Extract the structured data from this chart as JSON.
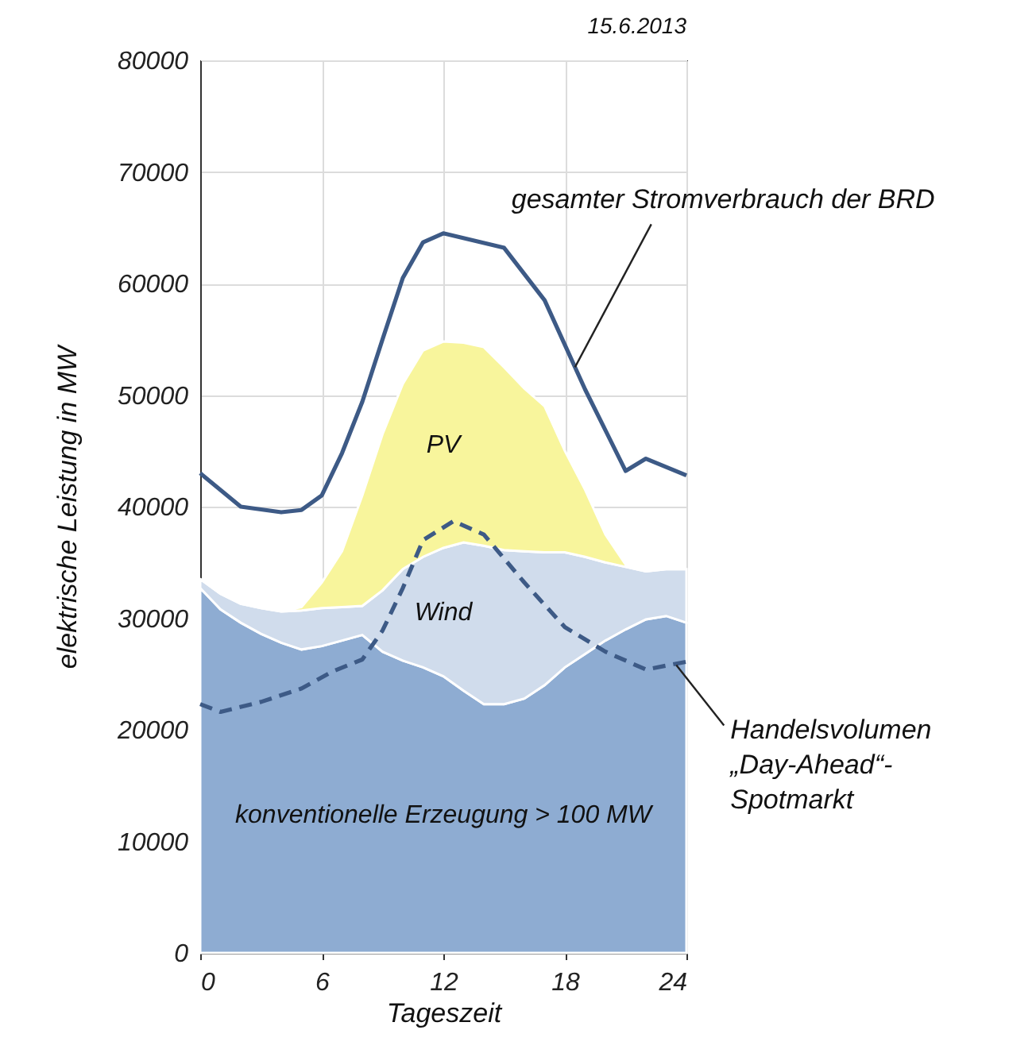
{
  "chart_data": {
    "type": "area",
    "title": "15.6.2013",
    "xlabel": "Tageszeit",
    "ylabel": "elektrische Leistung in MW",
    "x": [
      0,
      1,
      2,
      3,
      4,
      5,
      6,
      7,
      8,
      9,
      10,
      11,
      12,
      13,
      14,
      15,
      16,
      17,
      18,
      19,
      20,
      21,
      22,
      23,
      24
    ],
    "stacked": true,
    "series": [
      {
        "name": "konventionelle Erzeugung > 100 MW",
        "color": "#8eacd2",
        "values": [
          32700,
          30800,
          29600,
          28600,
          27800,
          27200,
          27500,
          28000,
          28500,
          27000,
          26200,
          25600,
          24800,
          23500,
          22300,
          22300,
          22800,
          24000,
          25600,
          26800,
          28000,
          29000,
          29900,
          30200,
          29600
        ]
      },
      {
        "name": "Wind",
        "color": "#d0dcec",
        "values": [
          800,
          1400,
          1700,
          2300,
          2800,
          3500,
          3400,
          3000,
          2600,
          5500,
          8200,
          9900,
          11500,
          13300,
          14200,
          13800,
          13200,
          11900,
          10300,
          8700,
          7000,
          5600,
          4300,
          4200,
          4800
        ]
      },
      {
        "name": "PV",
        "color": "#f8f59c",
        "values": [
          0,
          0,
          0,
          0,
          0,
          300,
          2300,
          5000,
          9900,
          14000,
          16600,
          18500,
          18500,
          17900,
          17800,
          16400,
          14600,
          13100,
          9100,
          6000,
          2500,
          200,
          0,
          0,
          0
        ]
      },
      {
        "type": "line",
        "color": "#3d5a86",
        "line_style": "solid",
        "x": [
          0,
          2,
          4,
          5,
          6,
          7,
          8,
          9,
          10,
          11,
          12,
          15,
          17,
          19,
          21,
          22,
          24
        ],
        "values": [
          43000,
          40000,
          39500,
          39700,
          41000,
          44800,
          49400,
          55000,
          60500,
          63700,
          64500,
          63200,
          58500,
          50500,
          43200,
          44300,
          42800
        ]
      },
      {
        "type": "line",
        "color": "#3d5a86",
        "line_style": "dashed",
        "x": [
          0,
          1,
          3,
          5,
          6.5,
          8,
          9,
          10,
          11,
          12.5,
          14,
          16,
          18,
          20,
          22,
          24
        ],
        "values": [
          22300,
          21600,
          22500,
          23700,
          25200,
          26300,
          28900,
          32700,
          37000,
          38700,
          37500,
          33200,
          29200,
          27000,
          25400,
          26100
        ]
      }
    ],
    "xlim": [
      0,
      24
    ],
    "xticks": [
      0,
      6,
      12,
      18,
      24
    ],
    "ylim": [
      0,
      80000
    ],
    "yticks": [
      0,
      10000,
      20000,
      30000,
      40000,
      50000,
      60000,
      70000,
      80000
    ],
    "grid": true,
    "annotations": [
      {
        "text": "gesamter Stromverbrauch der BRD",
        "x": 18.5,
        "y": 52500
      },
      {
        "text": "Handelsvolumen „Day-Ahead“-Spotmarkt",
        "x": 23.5,
        "y": 25800
      }
    ]
  }
}
